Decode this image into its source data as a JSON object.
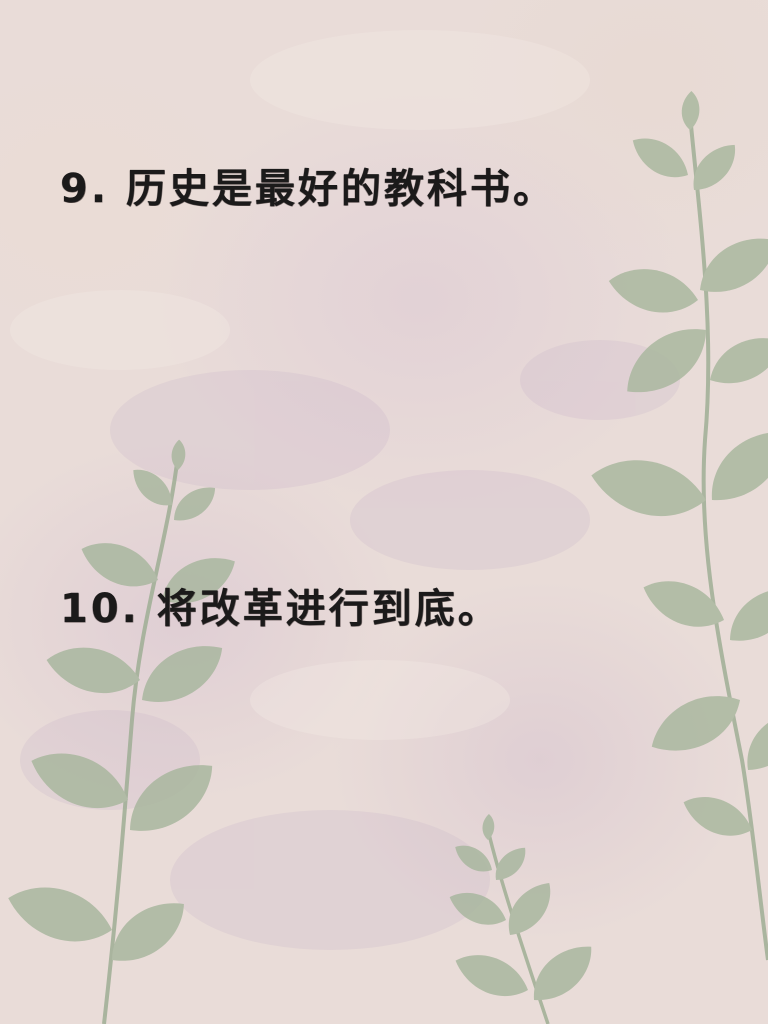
{
  "lines": [
    {
      "text": "9. 历史是最好的教科书。"
    },
    {
      "text": "10. 将改革进行到底。"
    }
  ],
  "colors": {
    "background": "#e9dcd8",
    "text": "#1b1a1a",
    "leaf": "#a9b79f",
    "leaf_dark": "#96a68c",
    "stem": "#9fae95"
  },
  "decoration": [
    "eucalyptus-branch-illustration"
  ]
}
